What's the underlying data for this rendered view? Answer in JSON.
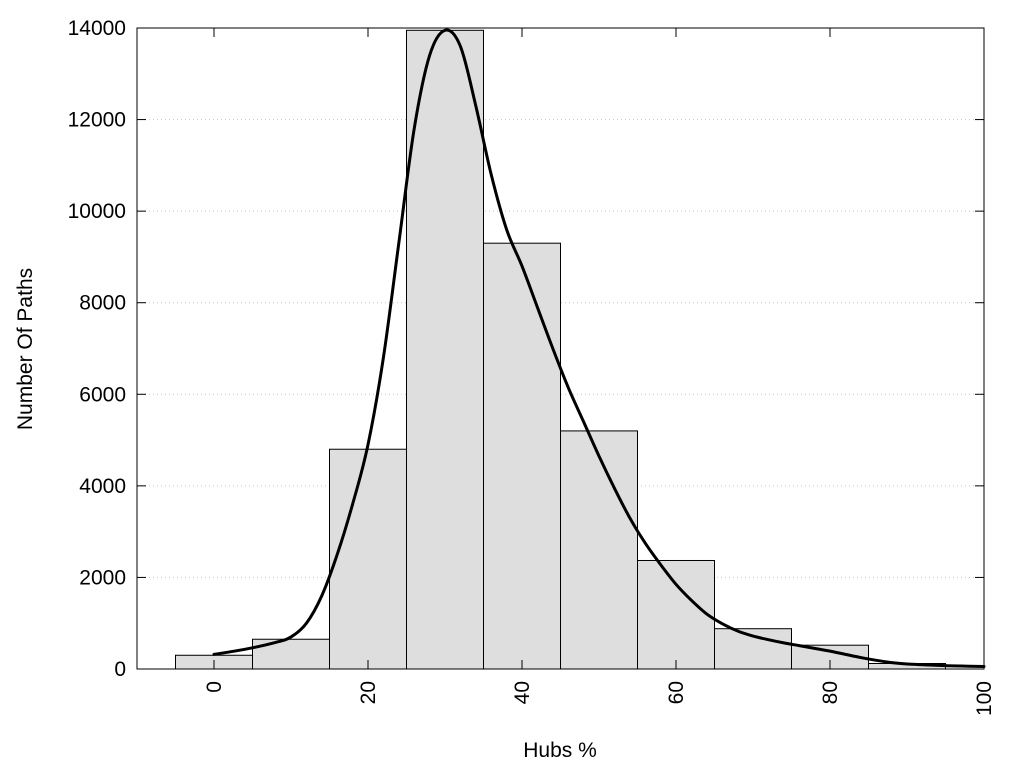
{
  "chart_data": {
    "type": "bar",
    "title": "",
    "xlabel": "Hubs %",
    "ylabel": "Number Of Paths",
    "xlim": [
      -10,
      100
    ],
    "ylim": [
      0,
      14000
    ],
    "bin_width": 10,
    "x_ticks": [
      0,
      20,
      40,
      60,
      80,
      100
    ],
    "y_ticks": [
      0,
      2000,
      4000,
      6000,
      8000,
      10000,
      12000,
      14000
    ],
    "grid": "horizontal dotted",
    "bars": [
      {
        "x": 0,
        "value": 300
      },
      {
        "x": 10,
        "value": 650
      },
      {
        "x": 20,
        "value": 4800
      },
      {
        "x": 30,
        "value": 13950
      },
      {
        "x": 40,
        "value": 9300
      },
      {
        "x": 50,
        "value": 5200
      },
      {
        "x": 60,
        "value": 2370
      },
      {
        "x": 70,
        "value": 880
      },
      {
        "x": 80,
        "value": 520
      },
      {
        "x": 90,
        "value": 120
      }
    ],
    "density_curve": [
      [
        0,
        320
      ],
      [
        4,
        430
      ],
      [
        8,
        580
      ],
      [
        10,
        700
      ],
      [
        12,
        1000
      ],
      [
        14,
        1600
      ],
      [
        16,
        2500
      ],
      [
        18,
        3600
      ],
      [
        20,
        4900
      ],
      [
        22,
        6800
      ],
      [
        24,
        9300
      ],
      [
        26,
        11800
      ],
      [
        28,
        13400
      ],
      [
        30,
        13950
      ],
      [
        32,
        13600
      ],
      [
        34,
        12300
      ],
      [
        36,
        10800
      ],
      [
        38,
        9600
      ],
      [
        40,
        8800
      ],
      [
        42,
        7900
      ],
      [
        44,
        7000
      ],
      [
        46,
        6150
      ],
      [
        48,
        5400
      ],
      [
        50,
        4650
      ],
      [
        52,
        3950
      ],
      [
        54,
        3300
      ],
      [
        56,
        2750
      ],
      [
        58,
        2280
      ],
      [
        60,
        1850
      ],
      [
        62,
        1500
      ],
      [
        64,
        1200
      ],
      [
        66,
        990
      ],
      [
        68,
        830
      ],
      [
        70,
        720
      ],
      [
        72,
        640
      ],
      [
        74,
        570
      ],
      [
        76,
        510
      ],
      [
        78,
        450
      ],
      [
        80,
        390
      ],
      [
        82,
        320
      ],
      [
        84,
        250
      ],
      [
        86,
        190
      ],
      [
        88,
        140
      ],
      [
        90,
        110
      ],
      [
        94,
        80
      ],
      [
        97,
        65
      ],
      [
        100,
        55
      ]
    ],
    "colors": {
      "bar_fill": "#dedede",
      "bar_stroke": "#000000",
      "curve": "#000000"
    }
  }
}
